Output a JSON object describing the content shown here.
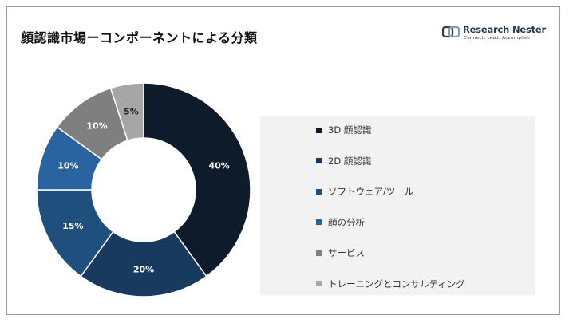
{
  "header": {
    "title": "顔認識市場ーコンポーネントによる分類",
    "logo_name": "Research Nester",
    "logo_tagline": "Connect. Lead. Accomplish"
  },
  "chart_data": {
    "type": "pie",
    "donut": true,
    "title": "顔認識市場ーコンポーネントによる分類",
    "legend_position": "right",
    "categories": [
      "3D 顔認識",
      "2D 顔認識",
      "ソフトウェア/ツール",
      "顔の分析",
      "サービス",
      "トレーニングとコンサルティング"
    ],
    "values": [
      40,
      20,
      15,
      10,
      10,
      5
    ],
    "value_labels": [
      "40%",
      "20%",
      "15%",
      "10%",
      "10%",
      "5%"
    ],
    "colors": [
      "#0d1b2a",
      "#173a5e",
      "#1f4f7d",
      "#2a64a0",
      "#7f7f7f",
      "#a6a6a6"
    ],
    "label_colors": [
      "#ffffff",
      "#ffffff",
      "#ffffff",
      "#ffffff",
      "#ffffff",
      "#222222"
    ]
  }
}
